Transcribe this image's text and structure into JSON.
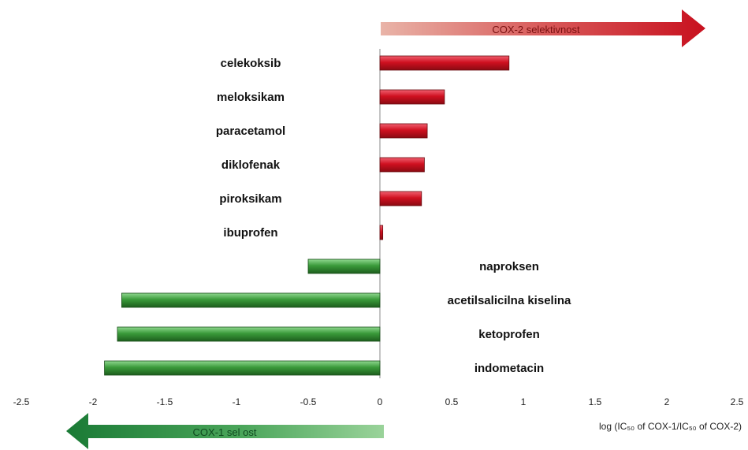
{
  "chart_data": {
    "type": "bar",
    "orientation": "horizontal",
    "categories": [
      "celekoksib",
      "meloksikam",
      "paracetamol",
      "diklofenak",
      "piroksikam",
      "ibuprofen",
      "naproksen",
      "acetilsalicilna kiselina",
      "ketoprofen",
      "indometacin"
    ],
    "values": [
      0.9,
      0.45,
      0.33,
      0.31,
      0.29,
      0.02,
      -0.5,
      -1.8,
      -1.83,
      -1.92
    ],
    "xlabel": "log (IC₅₀ of COX-1/IC₅₀ of COX-2)",
    "xlim": [
      -2.5,
      2.5
    ],
    "xticks": [
      "-2.5",
      "-2",
      "-1.5",
      "-1",
      "-0.5",
      "0",
      "0.5",
      "1",
      "1.5",
      "2",
      "2.5"
    ],
    "xtick_values": [
      -2.5,
      -2,
      -1.5,
      -1,
      -0.5,
      0,
      0.5,
      1,
      1.5,
      2,
      2.5
    ],
    "annotations": {
      "top_arrow": "COX-2 selektivnost",
      "bottom_arrow": "COX-1 sel ost"
    },
    "colors": {
      "positive": "#c8101e",
      "negative": "#2e8b2e",
      "top_arrow": "#c8101e",
      "bottom_arrow": "#1f8a3a"
    }
  }
}
